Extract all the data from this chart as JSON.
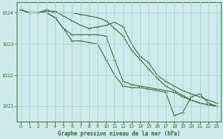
{
  "background_color": "#ceeaea",
  "grid_color": "#b0d4d4",
  "line_color": "#2d6a2d",
  "marker_color": "#2d6a2d",
  "xlabel": "Graphe pression niveau de la mer (hPa)",
  "ylim": [
    1020.5,
    1024.35
  ],
  "xlim": [
    -0.5,
    23.5
  ],
  "yticks": [
    1021,
    1022,
    1023,
    1024
  ],
  "xticks": [
    0,
    1,
    2,
    3,
    4,
    5,
    6,
    7,
    8,
    9,
    10,
    11,
    12,
    13,
    14,
    15,
    16,
    17,
    18,
    19,
    20,
    21,
    22,
    23
  ],
  "series_x": [
    [
      0,
      1,
      2,
      3,
      4,
      5,
      6,
      7,
      8,
      9,
      10,
      11,
      12,
      13,
      14,
      15,
      16,
      17,
      18,
      19,
      20,
      21,
      22,
      23
    ],
    [
      0,
      1,
      2,
      3,
      4,
      5,
      6,
      7,
      8,
      9,
      10,
      11,
      12,
      13,
      14,
      15,
      16,
      17,
      18,
      19,
      20,
      21,
      22,
      23
    ],
    [
      0,
      1,
      2,
      3,
      4,
      5,
      6,
      7,
      8,
      9,
      10,
      11,
      12,
      13,
      14,
      15,
      16,
      17,
      18,
      19,
      20,
      21,
      22,
      23
    ],
    [
      0,
      1,
      2,
      3,
      4,
      5,
      6,
      7,
      8,
      9,
      10,
      11,
      12,
      13,
      14,
      15,
      16,
      17,
      18,
      19,
      20,
      21,
      22,
      23
    ]
  ],
  "series_y": [
    [
      1024.1,
      1024.0,
      1024.0,
      1024.1,
      1024.0,
      1024.0,
      1024.0,
      1023.95,
      1023.9,
      1023.85,
      1023.75,
      1023.5,
      1023.25,
      1022.8,
      1022.5,
      1022.2,
      1021.9,
      1021.65,
      1021.5,
      1021.35,
      1021.2,
      1021.1,
      1021.05,
      1021.0
    ],
    [
      1024.1,
      1024.0,
      1024.0,
      1024.05,
      1024.05,
      1023.9,
      1023.75,
      1023.6,
      1023.5,
      1023.55,
      1023.6,
      1023.7,
      1023.55,
      1023.0,
      1022.6,
      1022.4,
      1022.0,
      1021.8,
      1021.65,
      1021.5,
      1021.4,
      1021.3,
      1021.2,
      1021.1
    ],
    [
      1024.1,
      1024.0,
      1024.0,
      1024.0,
      1023.85,
      1023.5,
      1023.3,
      1023.3,
      1023.3,
      1023.3,
      1023.25,
      1022.5,
      1021.8,
      1021.7,
      1021.65,
      1021.6,
      1021.55,
      1021.5,
      1021.45,
      1021.3,
      1021.2,
      1021.1,
      1021.05,
      1021.0
    ],
    [
      1024.1,
      1024.0,
      1024.0,
      1024.0,
      1023.85,
      1023.5,
      1023.1,
      1023.1,
      1023.05,
      1023.0,
      1022.5,
      1022.0,
      1021.65,
      1021.6,
      1021.6,
      1021.55,
      1021.5,
      1021.45,
      1020.7,
      1020.8,
      1021.3,
      1021.4,
      1021.1,
      1021.0
    ]
  ]
}
